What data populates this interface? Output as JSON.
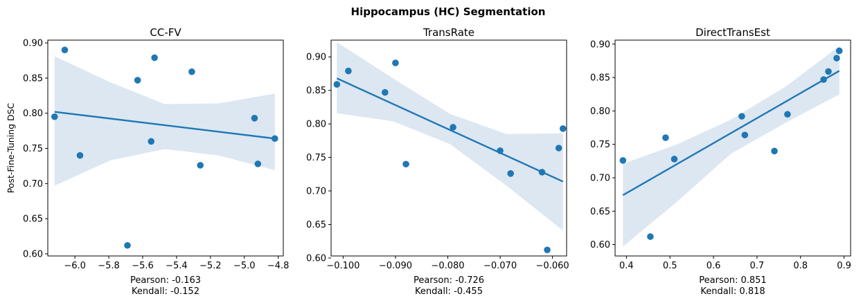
{
  "figure": {
    "suptitle": "Hippocampus (HC) Segmentation",
    "colors": {
      "points": "#1f77b4",
      "line": "#1f77b4",
      "band": "#dce7f2",
      "axes": "#000000"
    }
  },
  "chart_data": [
    {
      "type": "scatter",
      "title": "CC-FV",
      "xlabel": "",
      "ylabel": "Post-Fine-Tuning DSC",
      "xlim": [
        -6.16,
        -4.77
      ],
      "ylim": [
        0.597,
        0.904
      ],
      "xticks": [
        -6.0,
        -5.8,
        -5.6,
        -5.4,
        -5.2,
        -5.0,
        -4.8
      ],
      "xtick_labels": [
        "−6.0",
        "−5.8",
        "−5.6",
        "−5.4",
        "−5.2",
        "−5.0",
        "−4.8"
      ],
      "yticks": [
        0.6,
        0.65,
        0.7,
        0.75,
        0.8,
        0.85,
        0.9
      ],
      "ytick_labels": [
        "0.60",
        "0.65",
        "0.70",
        "0.75",
        "0.80",
        "0.85",
        "0.90"
      ],
      "points": [
        {
          "x": -6.12,
          "y": 0.795
        },
        {
          "x": -6.06,
          "y": 0.89
        },
        {
          "x": -5.97,
          "y": 0.74
        },
        {
          "x": -5.69,
          "y": 0.612
        },
        {
          "x": -5.63,
          "y": 0.847
        },
        {
          "x": -5.55,
          "y": 0.76
        },
        {
          "x": -5.53,
          "y": 0.879
        },
        {
          "x": -5.31,
          "y": 0.859
        },
        {
          "x": -5.26,
          "y": 0.726
        },
        {
          "x": -4.94,
          "y": 0.793
        },
        {
          "x": -4.92,
          "y": 0.728
        },
        {
          "x": -4.82,
          "y": 0.764
        }
      ],
      "regression": {
        "x": [
          -6.12,
          -4.82
        ],
        "y": [
          0.802,
          0.764
        ]
      },
      "ci_band": {
        "x": [
          -6.12,
          -5.79,
          -5.47,
          -5.15,
          -4.82
        ],
        "lower": [
          0.697,
          0.733,
          0.749,
          0.74,
          0.719
        ],
        "upper": [
          0.881,
          0.844,
          0.813,
          0.814,
          0.828
        ]
      },
      "footer": [
        "Pearson: -0.163",
        "Kendall: -0.152"
      ],
      "grid": false
    },
    {
      "type": "scatter",
      "title": "TransRate",
      "xlabel": "",
      "ylabel": "",
      "xlim": [
        -0.1023,
        -0.0573
      ],
      "ylim": [
        0.603,
        0.925
      ],
      "xticks": [
        -0.1,
        -0.09,
        -0.08,
        -0.07,
        -0.06
      ],
      "xtick_labels": [
        "−0.100",
        "−0.090",
        "−0.080",
        "−0.070",
        "−0.060"
      ],
      "yticks": [
        0.6,
        0.65,
        0.7,
        0.75,
        0.8,
        0.85,
        0.9
      ],
      "ytick_labels": [
        "0.60",
        "0.65",
        "0.70",
        "0.75",
        "0.80",
        "0.85",
        "0.90"
      ],
      "points": [
        {
          "x": -0.1012,
          "y": 0.859
        },
        {
          "x": -0.099,
          "y": 0.879
        },
        {
          "x": -0.092,
          "y": 0.847
        },
        {
          "x": -0.09,
          "y": 0.891
        },
        {
          "x": -0.088,
          "y": 0.74
        },
        {
          "x": -0.079,
          "y": 0.795
        },
        {
          "x": -0.07,
          "y": 0.76
        },
        {
          "x": -0.068,
          "y": 0.726
        },
        {
          "x": -0.062,
          "y": 0.728
        },
        {
          "x": -0.061,
          "y": 0.612
        },
        {
          "x": -0.0588,
          "y": 0.764
        },
        {
          "x": -0.058,
          "y": 0.793
        }
      ],
      "regression": {
        "x": [
          -0.1012,
          -0.058
        ],
        "y": [
          0.868,
          0.714
        ]
      },
      "ci_band": {
        "x": [
          -0.1012,
          -0.0905,
          -0.0796,
          -0.0688,
          -0.058
        ],
        "lower": [
          0.816,
          0.804,
          0.77,
          0.708,
          0.641
        ],
        "upper": [
          0.922,
          0.868,
          0.815,
          0.785,
          0.786
        ]
      },
      "footer": [
        "Pearson: -0.726",
        "Kendall: -0.455"
      ],
      "grid": false
    },
    {
      "type": "scatter",
      "title": "DirectTransEst",
      "xlabel": "",
      "ylabel": "",
      "xlim": [
        0.374,
        0.915
      ],
      "ylim": [
        0.583,
        0.906
      ],
      "xticks": [
        0.4,
        0.5,
        0.6,
        0.7,
        0.8,
        0.9
      ],
      "xtick_labels": [
        "0.4",
        "0.5",
        "0.6",
        "0.7",
        "0.8",
        "0.9"
      ],
      "yticks": [
        0.6,
        0.65,
        0.7,
        0.75,
        0.8,
        0.85,
        0.9
      ],
      "ytick_labels": [
        "0.60",
        "0.65",
        "0.70",
        "0.75",
        "0.80",
        "0.85",
        "0.90"
      ],
      "points": [
        {
          "x": 0.392,
          "y": 0.726
        },
        {
          "x": 0.455,
          "y": 0.612
        },
        {
          "x": 0.49,
          "y": 0.76
        },
        {
          "x": 0.51,
          "y": 0.728
        },
        {
          "x": 0.665,
          "y": 0.792
        },
        {
          "x": 0.672,
          "y": 0.764
        },
        {
          "x": 0.74,
          "y": 0.74
        },
        {
          "x": 0.77,
          "y": 0.795
        },
        {
          "x": 0.853,
          "y": 0.847
        },
        {
          "x": 0.864,
          "y": 0.859
        },
        {
          "x": 0.883,
          "y": 0.879
        },
        {
          "x": 0.889,
          "y": 0.89
        }
      ],
      "regression": {
        "x": [
          0.392,
          0.889
        ],
        "y": [
          0.674,
          0.86
        ]
      },
      "ci_band": {
        "x": [
          0.392,
          0.516,
          0.64,
          0.765,
          0.889
        ],
        "lower": [
          0.597,
          0.664,
          0.736,
          0.782,
          0.825
        ],
        "upper": [
          0.721,
          0.75,
          0.787,
          0.836,
          0.897
        ]
      },
      "footer": [
        "Pearson: 0.851",
        "Kendall: 0.818"
      ],
      "grid": false
    }
  ]
}
